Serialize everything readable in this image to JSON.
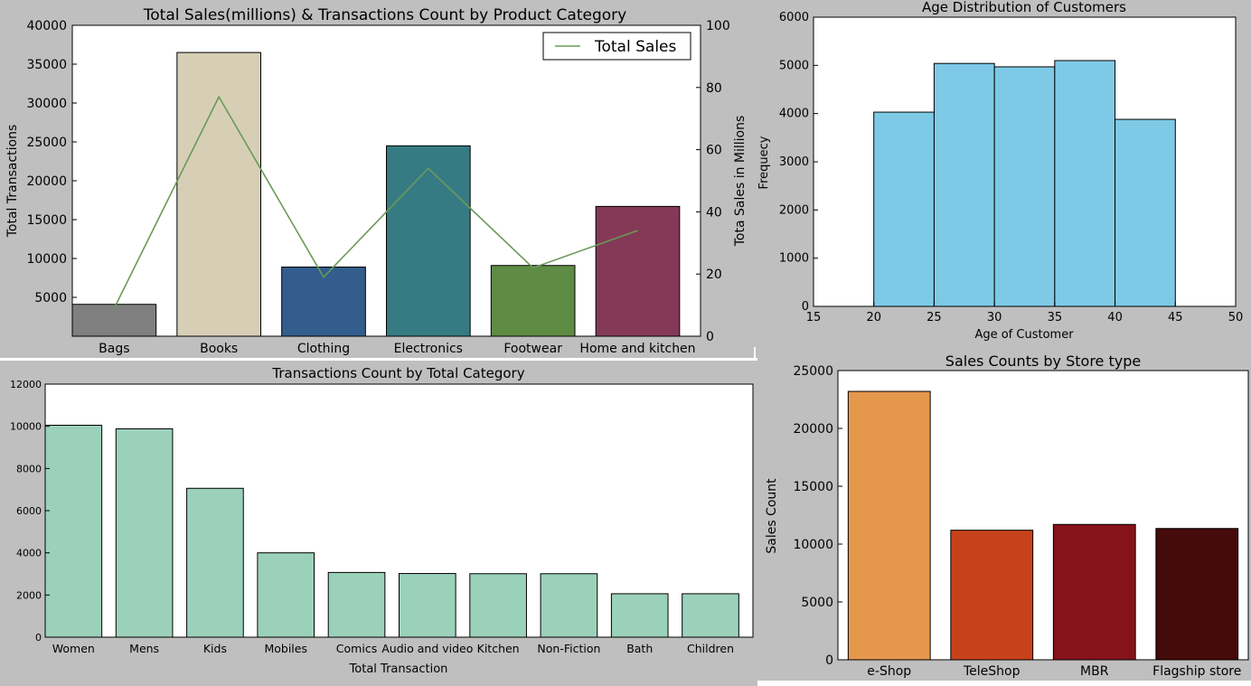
{
  "colors": {
    "background": "#bfbfbf",
    "line": "#6a9a5a",
    "hist": "#7ecae6",
    "bottom_bar": "#9bd1ba"
  },
  "chart_data": [
    {
      "id": "category_sales",
      "type": "bar",
      "title": "Total Sales(millions) & Transactions Count by Product Category",
      "xlabel": "",
      "ylabel": "Total Transactions",
      "y2label": "Tota Sales in Millions",
      "categories": [
        "Bags",
        "Books",
        "Clothing",
        "Electronics",
        "Footwear",
        "Home and kitchen"
      ],
      "values": [
        4100,
        36500,
        8900,
        24500,
        9100,
        16700
      ],
      "bar_colors": [
        "#808080",
        "#d6cfb6",
        "#335d8c",
        "#367b83",
        "#5f8c44",
        "#843a57"
      ],
      "ylim": [
        0,
        40000
      ],
      "yticks": [
        5000,
        10000,
        15000,
        20000,
        25000,
        30000,
        35000,
        40000
      ],
      "y2lim": [
        0,
        100
      ],
      "y2ticks": [
        0,
        20,
        40,
        60,
        80,
        100
      ],
      "line_series": {
        "name": "Total Sales",
        "values": [
          9,
          77,
          19,
          54,
          22,
          34
        ]
      },
      "legend": "top-right",
      "grid": false
    },
    {
      "id": "age_hist",
      "type": "bar",
      "title": "Age Distribution of Customers",
      "xlabel": "Age of Customer",
      "ylabel": "Frequecy",
      "bins": [
        [
          20,
          25,
          4030
        ],
        [
          25,
          30,
          5040
        ],
        [
          30,
          35,
          4970
        ],
        [
          35,
          40,
          5100
        ],
        [
          40,
          45,
          3880
        ]
      ],
      "xlim": [
        15,
        50
      ],
      "xticks": [
        15,
        20,
        25,
        30,
        35,
        40,
        45,
        50
      ],
      "ylim": [
        0,
        6000
      ],
      "yticks": [
        0,
        1000,
        2000,
        3000,
        4000,
        5000,
        6000
      ],
      "grid": false
    },
    {
      "id": "subcat_counts",
      "type": "bar",
      "title": "Transactions Count by Total Category",
      "xlabel": "Total Transaction",
      "ylabel": "",
      "categories": [
        "Women",
        "Mens",
        "Kids",
        "Mobiles",
        "Comics",
        "Audio and video",
        "Kitchen",
        "Non-Fiction",
        "Bath",
        "Children"
      ],
      "values": [
        10050,
        9880,
        7060,
        4000,
        3070,
        3020,
        3010,
        3010,
        2060,
        2060
      ],
      "ylim": [
        0,
        12000
      ],
      "yticks": [
        0,
        2000,
        4000,
        6000,
        8000,
        10000,
        12000
      ],
      "grid": false
    },
    {
      "id": "store_type",
      "type": "bar",
      "title": "Sales Counts by Store type",
      "xlabel": "",
      "ylabel": "Sales Count",
      "categories": [
        "e-Shop",
        "TeleShop",
        "MBR",
        "Flagship store"
      ],
      "values": [
        23200,
        11200,
        11700,
        11350
      ],
      "bar_colors": [
        "#e5984c",
        "#c7421b",
        "#87131a",
        "#450a0a"
      ],
      "ylim": [
        0,
        25000
      ],
      "yticks": [
        0,
        5000,
        10000,
        15000,
        20000,
        25000
      ],
      "grid": false
    }
  ]
}
